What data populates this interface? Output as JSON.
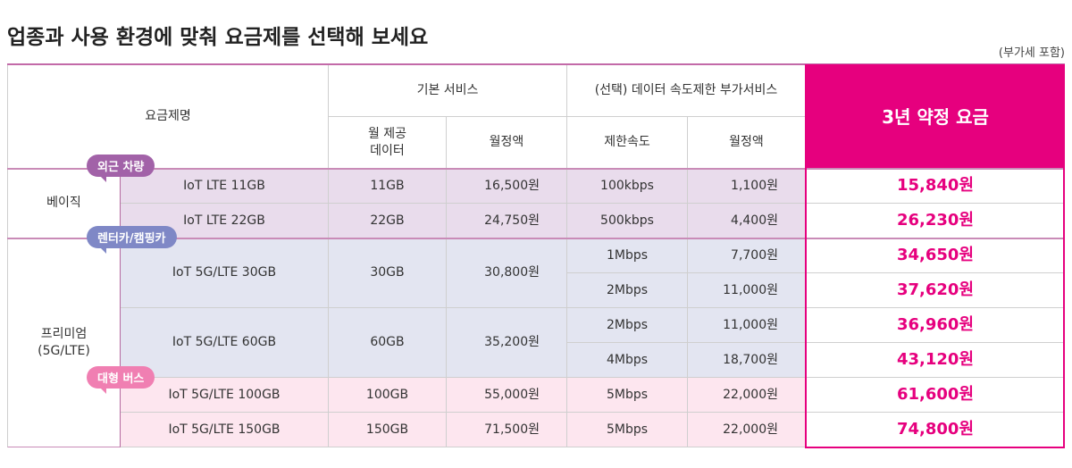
{
  "header": {
    "title": "업종과 사용 환경에 맞춰 요금제를 선택해 보세요",
    "note": "(부가세 포함)"
  },
  "table": {
    "columns": {
      "plan": "요금제명",
      "basic_service": "기본 서비스",
      "speed_service": "(선택) 데이터 속도제한 부가서비스",
      "price": "3년 약정 요금",
      "data": "월 제공\n데이터",
      "fee": "월정액",
      "speed": "제한속도",
      "option_fee": "월정액"
    },
    "groups": [
      {
        "name": "베이직",
        "plans": [
          {
            "name": "IoT LTE 11GB",
            "data": "11GB",
            "fee": "16,500원",
            "options": [
              {
                "speed": "100kbps",
                "fee": "1,100원",
                "price": "15,840원"
              }
            ]
          },
          {
            "name": "IoT LTE 22GB",
            "data": "22GB",
            "fee": "24,750원",
            "options": [
              {
                "speed": "500kbps",
                "fee": "4,400원",
                "price": "26,230원"
              }
            ]
          }
        ]
      },
      {
        "name": "프리미엄\n(5G/LTE)",
        "plans": [
          {
            "name": "IoT 5G/LTE 30GB",
            "data": "30GB",
            "fee": "30,800원",
            "options": [
              {
                "speed": "1Mbps",
                "fee": "7,700원",
                "price": "34,650원"
              },
              {
                "speed": "2Mbps",
                "fee": "11,000원",
                "price": "37,620원"
              }
            ]
          },
          {
            "name": "IoT 5G/LTE 60GB",
            "data": "60GB",
            "fee": "35,200원",
            "options": [
              {
                "speed": "2Mbps",
                "fee": "11,000원",
                "price": "36,960원"
              },
              {
                "speed": "4Mbps",
                "fee": "18,700원",
                "price": "43,120원"
              }
            ]
          },
          {
            "name": "IoT 5G/LTE 100GB",
            "data": "100GB",
            "fee": "55,000원",
            "options": [
              {
                "speed": "5Mbps",
                "fee": "22,000원",
                "price": "61,600원"
              }
            ]
          },
          {
            "name": "IoT 5G/LTE 150GB",
            "data": "150GB",
            "fee": "71,500원",
            "options": [
              {
                "speed": "5Mbps",
                "fee": "22,000원",
                "price": "74,800원"
              }
            ]
          }
        ]
      }
    ],
    "badges": [
      "외근 차량",
      "렌터카/캠핑카",
      "대형 버스"
    ]
  }
}
